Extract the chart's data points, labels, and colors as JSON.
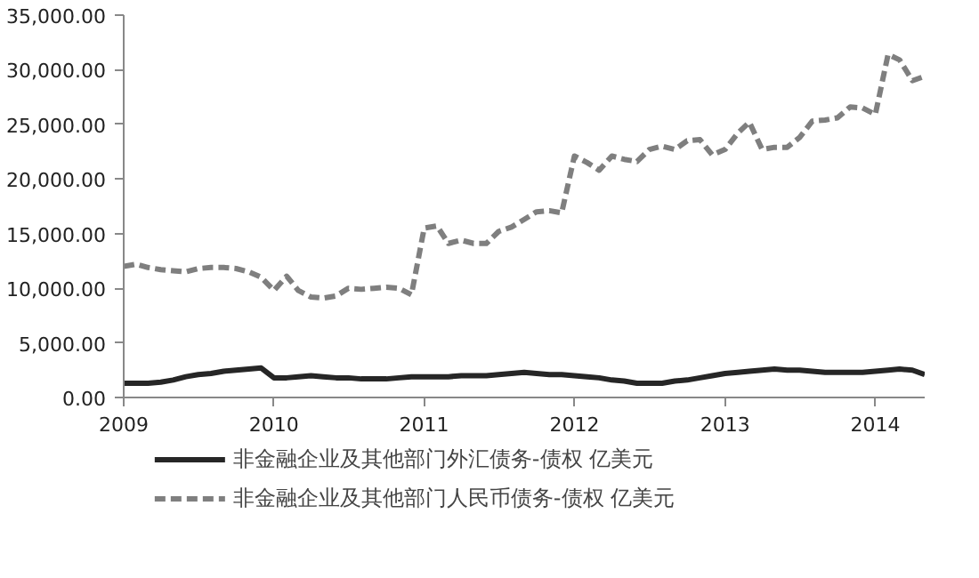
{
  "chart_data": {
    "type": "line",
    "x": [
      "2009-01",
      "2009-02",
      "2009-03",
      "2009-04",
      "2009-05",
      "2009-06",
      "2009-07",
      "2009-08",
      "2009-09",
      "2009-10",
      "2009-11",
      "2009-12",
      "2010-01",
      "2010-02",
      "2010-03",
      "2010-04",
      "2010-05",
      "2010-06",
      "2010-07",
      "2010-08",
      "2010-09",
      "2010-10",
      "2010-11",
      "2010-12",
      "2011-01",
      "2011-02",
      "2011-03",
      "2011-04",
      "2011-05",
      "2011-06",
      "2011-07",
      "2011-08",
      "2011-09",
      "2011-10",
      "2011-11",
      "2011-12",
      "2012-01",
      "2012-02",
      "2012-03",
      "2012-04",
      "2012-05",
      "2012-06",
      "2012-07",
      "2012-08",
      "2012-09",
      "2012-10",
      "2012-11",
      "2012-12",
      "2013-01",
      "2013-02",
      "2013-03",
      "2013-04",
      "2013-05",
      "2013-06",
      "2013-07",
      "2013-08",
      "2013-09",
      "2013-10",
      "2013-11",
      "2013-12",
      "2014-01",
      "2014-02",
      "2014-03",
      "2014-04",
      "2014-05"
    ],
    "series": [
      {
        "name": "非金融企业及其他部门外汇债务-债权 亿美元",
        "color": "#262626",
        "line_style": "solid",
        "values": [
          1300,
          1300,
          1300,
          1400,
          1600,
          1900,
          2100,
          2200,
          2400,
          2500,
          2600,
          2700,
          1800,
          1800,
          1900,
          2000,
          1900,
          1800,
          1800,
          1700,
          1700,
          1700,
          1800,
          1900,
          1900,
          1900,
          1900,
          2000,
          2000,
          2000,
          2100,
          2200,
          2300,
          2200,
          2100,
          2100,
          2000,
          1900,
          1800,
          1600,
          1500,
          1300,
          1300,
          1300,
          1500,
          1600,
          1800,
          2000,
          2200,
          2300,
          2400,
          2500,
          2600,
          2500,
          2500,
          2400,
          2300,
          2300,
          2300,
          2300,
          2400,
          2500,
          2600,
          2500,
          2100
        ]
      },
      {
        "name": "非金融企业及其他部门人民币债务-债权 亿美元",
        "color": "#7f7f7f",
        "line_style": "dashed",
        "values": [
          12000,
          12200,
          11900,
          11700,
          11600,
          11500,
          11800,
          11900,
          11900,
          11800,
          11500,
          11000,
          9800,
          11100,
          9800,
          9200,
          9100,
          9300,
          10000,
          9900,
          10000,
          10100,
          10000,
          9400,
          15500,
          15700,
          14100,
          14400,
          14100,
          14100,
          15200,
          15600,
          16300,
          17000,
          17100,
          16900,
          22100,
          21500,
          20800,
          22100,
          21800,
          21600,
          22700,
          23000,
          22700,
          23500,
          23600,
          22200,
          22700,
          24200,
          25200,
          22700,
          22900,
          22900,
          23800,
          25300,
          25400,
          25600,
          26600,
          26500,
          25900,
          31400,
          30900,
          29000,
          29400
        ]
      }
    ],
    "xlim": [
      "2009-01",
      "2014-05"
    ],
    "xticks": [
      "2009",
      "2010",
      "2011",
      "2012",
      "2013",
      "2014"
    ],
    "ylim": [
      0,
      35000
    ],
    "yticks": [
      {
        "value": 0,
        "label": "0.00"
      },
      {
        "value": 5000,
        "label": "5,000.00"
      },
      {
        "value": 10000,
        "label": "10,000.00"
      },
      {
        "value": 15000,
        "label": "15,000.00"
      },
      {
        "value": 20000,
        "label": "20,000.00"
      },
      {
        "value": 25000,
        "label": "25,000.00"
      },
      {
        "value": 30000,
        "label": "30,000.00"
      },
      {
        "value": 35000,
        "label": "35,000.00"
      }
    ],
    "grid": false,
    "legend": "bottom"
  }
}
